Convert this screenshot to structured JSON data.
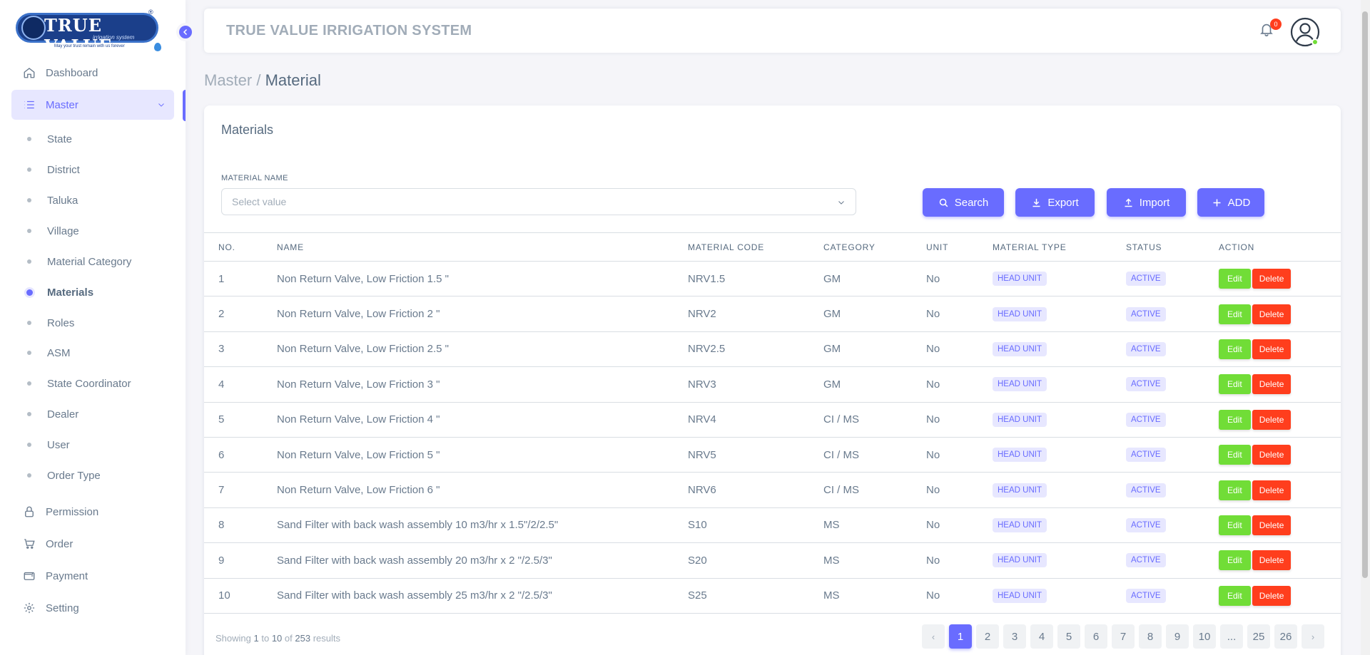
{
  "logo": {
    "text": "TRUE VALUE",
    "subtitle": "irrigation system",
    "tagline": "May your trust remain with us forever",
    "reg": "®"
  },
  "colors": {
    "accent": "#696cff",
    "success": "#71dd37",
    "danger": "#ff3e1d"
  },
  "sidebar": {
    "items": [
      {
        "label": "Dashboard",
        "icon": "home-icon"
      },
      {
        "label": "Master",
        "icon": "list-icon"
      },
      {
        "label": "Permission",
        "icon": "lock-icon"
      },
      {
        "label": "Order",
        "icon": "cart-icon"
      },
      {
        "label": "Payment",
        "icon": "wallet-icon"
      },
      {
        "label": "Setting",
        "icon": "gear-icon"
      }
    ],
    "sub_items": [
      "State",
      "District",
      "Taluka",
      "Village",
      "Material Category",
      "Materials",
      "Roles",
      "ASM",
      "State Coordinator",
      "Dealer",
      "User",
      "Order Type"
    ],
    "active_sub": "Materials"
  },
  "header": {
    "title": "TRUE VALUE IRRIGATION SYSTEM",
    "notification_count": "0"
  },
  "breadcrumb": {
    "parent": "Master",
    "separator": " / ",
    "current": "Material"
  },
  "card": {
    "title": "Materials",
    "filter_label": "MATERIAL NAME",
    "filter_placeholder": "Select value",
    "buttons": {
      "search": "Search",
      "export": "Export",
      "import": "Import",
      "add": "ADD"
    }
  },
  "table": {
    "headers": [
      "NO.",
      "NAME",
      "MATERIAL CODE",
      "CATEGORY",
      "UNIT",
      "MATERIAL TYPE",
      "STATUS",
      "ACTION"
    ],
    "edit_label": "Edit",
    "delete_label": "Delete",
    "rows": [
      {
        "no": "1",
        "name": "Non Return Valve, Low Friction 1.5 \"",
        "code": "NRV1.5",
        "category": "GM",
        "unit": "No",
        "type": "HEAD UNIT",
        "status": "ACTIVE"
      },
      {
        "no": "2",
        "name": "Non Return Valve, Low Friction 2 \"",
        "code": "NRV2",
        "category": "GM",
        "unit": "No",
        "type": "HEAD UNIT",
        "status": "ACTIVE"
      },
      {
        "no": "3",
        "name": "Non Return Valve, Low Friction 2.5 \"",
        "code": "NRV2.5",
        "category": "GM",
        "unit": "No",
        "type": "HEAD UNIT",
        "status": "ACTIVE"
      },
      {
        "no": "4",
        "name": "Non Return Valve, Low Friction 3 \"",
        "code": "NRV3",
        "category": "GM",
        "unit": "No",
        "type": "HEAD UNIT",
        "status": "ACTIVE"
      },
      {
        "no": "5",
        "name": "Non Return Valve, Low Friction 4 \"",
        "code": "NRV4",
        "category": "CI / MS",
        "unit": "No",
        "type": "HEAD UNIT",
        "status": "ACTIVE"
      },
      {
        "no": "6",
        "name": "Non Return Valve, Low Friction 5 \"",
        "code": "NRV5",
        "category": "CI / MS",
        "unit": "No",
        "type": "HEAD UNIT",
        "status": "ACTIVE"
      },
      {
        "no": "7",
        "name": "Non Return Valve, Low Friction 6 \"",
        "code": "NRV6",
        "category": "CI / MS",
        "unit": "No",
        "type": "HEAD UNIT",
        "status": "ACTIVE"
      },
      {
        "no": "8",
        "name": "Sand Filter with back wash assembly 10 m3/hr x 1.5\"/2/2.5\"",
        "code": "S10",
        "category": "MS",
        "unit": "No",
        "type": "HEAD UNIT",
        "status": "ACTIVE"
      },
      {
        "no": "9",
        "name": "Sand Filter with back wash assembly 20 m3/hr x 2 \"/2.5/3\"",
        "code": "S20",
        "category": "MS",
        "unit": "No",
        "type": "HEAD UNIT",
        "status": "ACTIVE"
      },
      {
        "no": "10",
        "name": "Sand Filter with back wash assembly 25 m3/hr x 2 \"/2.5/3\"",
        "code": "S25",
        "category": "MS",
        "unit": "No",
        "type": "HEAD UNIT",
        "status": "ACTIVE"
      }
    ]
  },
  "pagination": {
    "showing_prefix": "Showing",
    "from": "1",
    "to_word": "to",
    "to": "10",
    "of_word": "of",
    "total": "253",
    "suffix": "results",
    "prev": "‹",
    "next": "›",
    "pages": [
      "1",
      "2",
      "3",
      "4",
      "5",
      "6",
      "7",
      "8",
      "9",
      "10",
      "...",
      "25",
      "26"
    ],
    "current": "1"
  }
}
